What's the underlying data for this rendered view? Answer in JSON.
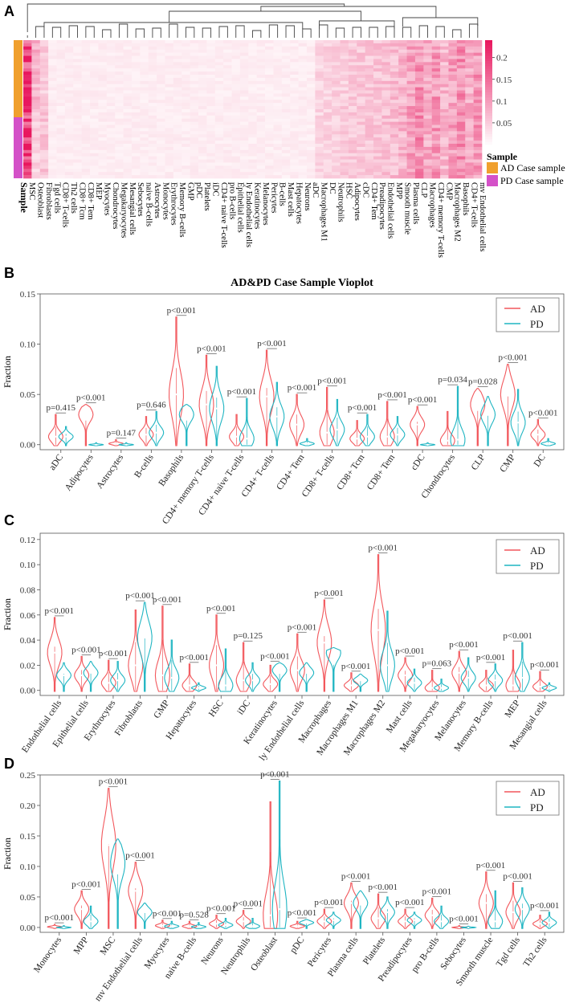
{
  "panels": {
    "A": "A",
    "B": "B",
    "C": "C",
    "D": "D"
  },
  "heatmap": {
    "row_label": "Sample",
    "columns": [
      "MSC",
      "Osteoblast",
      "Fibroblasts",
      "Tgd cells",
      "CD8+ T-cells",
      "Th2 cells",
      "CD8+ Tcm",
      "CD8+ Tem",
      "MEP",
      "Myocytes",
      "Chondrocytes",
      "Megakaryocytes",
      "Mesangial cells",
      "Sebocytes",
      "naive B-cells",
      "Astrocytes",
      "Monocytes",
      "Erythrocytes",
      "Memory B-cells",
      "GMP",
      "pDC",
      "Platelets",
      "iDC",
      "CD4+ naive T-cells",
      "pro B-cells",
      "Epithelial cells",
      "ly Endothelial cells",
      "Keratinocytes",
      "Melanocytes",
      "Pericytes",
      "B-cells",
      "Mast cells",
      "Hepatocytes",
      "Neurons",
      "aDC",
      "Macrophages M1",
      "DC",
      "Neutrophils",
      "HSC",
      "Adipocytes",
      "cDC",
      "CD4+ Tem",
      "Preadipocytes",
      "Endothelial cells",
      "MPP",
      "Smooth muscle",
      "Plasma cells",
      "CLP",
      "Macrophages",
      "CD4+ memory T-cells",
      "CMP",
      "Macrophages M2",
      "Basophils",
      "CD4+ T-cells",
      "mv Endothelial cells"
    ],
    "colorbar_ticks": [
      "0.2",
      "0.15",
      "0.1",
      "0.05"
    ],
    "colorbar_values": [
      0.2,
      0.15,
      0.1,
      0.05
    ],
    "colorbar_range": [
      0,
      0.24
    ],
    "legend_title": "Sample",
    "legend_items": [
      {
        "label": "AD Case sample",
        "color": "#f0a02e"
      },
      {
        "label": "PD Case sample",
        "color": "#d451c8"
      }
    ]
  },
  "colors": {
    "AD": "#f2575c",
    "PD": "#1fb5c2",
    "heat_high": "#e8185f"
  },
  "chart_data": [
    {
      "type": "violin",
      "panel": "B",
      "title": "AD&PD Case Sample Vioplot",
      "ylabel": "Fraction",
      "ylim": [
        -0.005,
        0.15
      ],
      "yticks": [
        0.0,
        0.05,
        0.1,
        0.15
      ],
      "ytick_labels": [
        "0.00",
        "0.05",
        "0.10",
        "0.15"
      ],
      "legend": [
        "AD",
        "PD"
      ],
      "categories": [
        "aDC",
        "Adipocytes",
        "Astrocytes",
        "B-cells",
        "Basophils",
        "CD4+ memory T-cells",
        "CD4+ naive T-cells",
        "CD4+ T-cells",
        "CD4+ Tem",
        "CD8+ T-cells",
        "CD8+ Tcm",
        "CD8+ Tem",
        "cDC",
        "Chondrocytes",
        "CLP",
        "CMP",
        "DC"
      ],
      "p_values": [
        "p=0.415",
        "p<0.001",
        "p=0.147",
        "p=0.646",
        "p<0.001",
        "p<0.001",
        "p<0.001",
        "p<0.001",
        "p<0.001",
        "p<0.001",
        "p<0.001",
        "p<0.001",
        "p<0.001",
        "p=0.034",
        "p=0.028",
        "p<0.001",
        "p<0.001"
      ],
      "AD_max": [
        0.03,
        0.04,
        0.005,
        0.028,
        0.127,
        0.089,
        0.03,
        0.094,
        0.05,
        0.057,
        0.024,
        0.043,
        0.038,
        0.033,
        0.056,
        0.08,
        0.025
      ],
      "AD_median": [
        0.008,
        0.03,
        0.001,
        0.01,
        0.05,
        0.04,
        0.008,
        0.048,
        0.02,
        0.012,
        0.006,
        0.008,
        0.02,
        0.004,
        0.04,
        0.05,
        0.01
      ],
      "PD_max": [
        0.018,
        0.002,
        0.002,
        0.033,
        0.04,
        0.078,
        0.046,
        0.062,
        0.006,
        0.045,
        0.03,
        0.028,
        0.002,
        0.058,
        0.048,
        0.055,
        0.006
      ],
      "PD_median": [
        0.008,
        0.0,
        0.0,
        0.012,
        0.03,
        0.036,
        0.006,
        0.028,
        0.001,
        0.015,
        0.008,
        0.01,
        0.0,
        0.005,
        0.03,
        0.022,
        0.001
      ]
    },
    {
      "type": "violin",
      "panel": "C",
      "ylabel": "Fraction",
      "ylim": [
        -0.004,
        0.125
      ],
      "yticks": [
        0.0,
        0.02,
        0.04,
        0.06,
        0.08,
        0.1,
        0.12
      ],
      "ytick_labels": [
        "0.00",
        "0.02",
        "0.04",
        "0.06",
        "0.08",
        "0.10",
        "0.12"
      ],
      "legend": [
        "AD",
        "PD"
      ],
      "categories": [
        "Endothelial cells",
        "Epithelial cells",
        "Erythrocytes",
        "Fibroblasts",
        "GMP",
        "Hepatocytes",
        "HSC",
        "iDC",
        "Keratinocytes",
        "ly Endothelial cells",
        "Macrophages",
        "Macrophages M1",
        "Macrophages M2",
        "Mast cells",
        "Megakaryocytes",
        "Melanocytes",
        "Memory B-cells",
        "MEP",
        "Mesangial cells"
      ],
      "p_values": [
        "p<0.001",
        "p<0.001",
        "p<0.001",
        "p<0.001",
        "p<0.001",
        "p<0.001",
        "p<0.001",
        "p=0.125",
        "p<0.001",
        "p<0.001",
        "p<0.001",
        "p<0.001",
        "p<0.001",
        "p<0.001",
        "p=0.063",
        "p<0.001",
        "p<0.001",
        "p<0.001",
        "p<0.001"
      ],
      "AD_max": [
        0.058,
        0.027,
        0.024,
        0.064,
        0.067,
        0.021,
        0.06,
        0.038,
        0.02,
        0.045,
        0.072,
        0.014,
        0.108,
        0.026,
        0.016,
        0.031,
        0.016,
        0.032,
        0.015
      ],
      "AD_median": [
        0.03,
        0.012,
        0.006,
        0.02,
        0.012,
        0.004,
        0.02,
        0.008,
        0.005,
        0.016,
        0.038,
        0.004,
        0.048,
        0.012,
        0.002,
        0.014,
        0.004,
        0.004,
        0.003
      ],
      "PD_max": [
        0.022,
        0.023,
        0.023,
        0.07,
        0.04,
        0.006,
        0.033,
        0.022,
        0.022,
        0.022,
        0.034,
        0.013,
        0.063,
        0.017,
        0.009,
        0.026,
        0.021,
        0.038,
        0.006
      ],
      "PD_median": [
        0.012,
        0.014,
        0.008,
        0.042,
        0.01,
        0.002,
        0.004,
        0.008,
        0.016,
        0.014,
        0.03,
        0.008,
        0.02,
        0.006,
        0.002,
        0.01,
        0.008,
        0.01,
        0.002
      ]
    },
    {
      "type": "violin",
      "panel": "D",
      "ylabel": "Fraction",
      "ylim": [
        -0.008,
        0.25
      ],
      "yticks": [
        0.0,
        0.05,
        0.1,
        0.15,
        0.2,
        0.25
      ],
      "ytick_labels": [
        "0.00",
        "0.05",
        "0.10",
        "0.15",
        "0.20",
        "0.25"
      ],
      "legend": [
        "AD",
        "PD"
      ],
      "categories": [
        "Monocytes",
        "MPP",
        "MSC",
        "mv Endothelial cells",
        "Myocytes",
        "naive B-cells",
        "Neurons",
        "Neutrophils",
        "Osteoblast",
        "pDC",
        "Pericytes",
        "Plasma cells",
        "Platelets",
        "Preadipocytes",
        "pro B-cells",
        "Sebocytes",
        "Smooth muscle",
        "Tgd cells",
        "Th2 cells"
      ],
      "p_values": [
        "p<0.001",
        "p<0.001",
        "p<0.001",
        "p<0.001",
        "p<0.001",
        "p=0.528",
        "p<0.001",
        "p<0.001",
        "p<0.001",
        "p<0.001",
        "p<0.001",
        "p<0.001",
        "p<0.001",
        "p<0.001",
        "p<0.001",
        "p<0.001",
        "p<0.001",
        "p<0.001",
        "p<0.001"
      ],
      "AD_max": [
        0.005,
        0.06,
        0.228,
        0.107,
        0.012,
        0.01,
        0.02,
        0.028,
        0.206,
        0.01,
        0.03,
        0.073,
        0.055,
        0.03,
        0.048,
        0.003,
        0.091,
        0.073,
        0.02
      ],
      "AD_median": [
        0.001,
        0.03,
        0.135,
        0.06,
        0.003,
        0.002,
        0.006,
        0.01,
        0.02,
        0.002,
        0.01,
        0.04,
        0.015,
        0.01,
        0.02,
        0.0,
        0.04,
        0.025,
        0.006
      ],
      "PD_max": [
        0.003,
        0.035,
        0.145,
        0.04,
        0.01,
        0.008,
        0.015,
        0.015,
        0.24,
        0.013,
        0.025,
        0.06,
        0.05,
        0.025,
        0.035,
        0.002,
        0.06,
        0.065,
        0.025
      ],
      "PD_median": [
        0.0,
        0.01,
        0.105,
        0.025,
        0.002,
        0.001,
        0.004,
        0.002,
        0.03,
        0.008,
        0.012,
        0.04,
        0.025,
        0.012,
        0.01,
        0.0,
        0.01,
        0.03,
        0.008
      ]
    }
  ]
}
